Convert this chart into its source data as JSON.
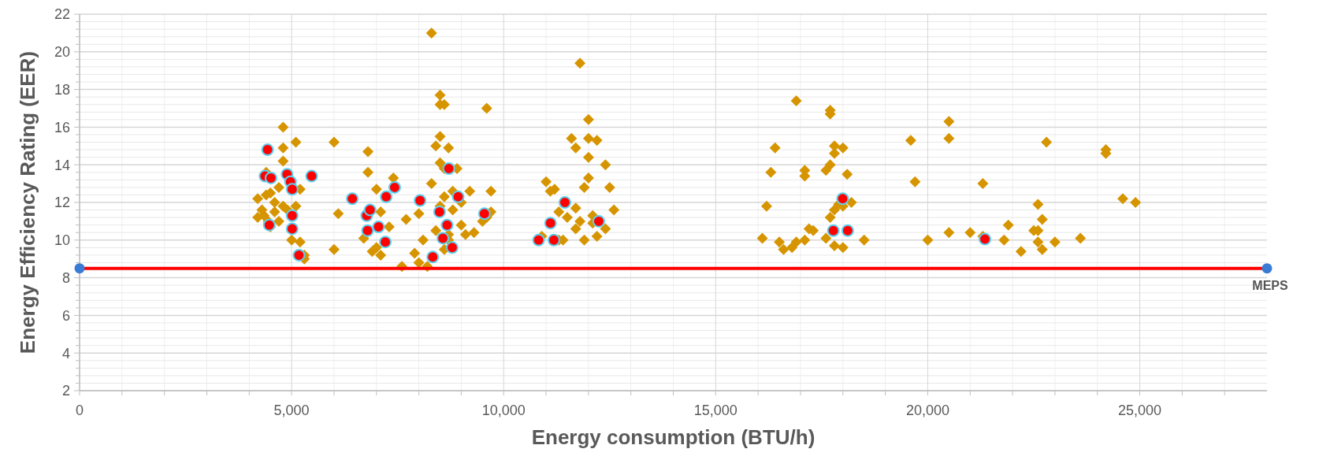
{
  "chart_data": {
    "type": "scatter",
    "xlabel": "Energy consumption (BTU/h)",
    "ylabel": "Energy Efficiency Rating (EER)",
    "xlim": [
      0,
      28000
    ],
    "xticks": [
      0,
      {
        "value": 5000,
        "label": "5,000"
      },
      {
        "value": 10000,
        "label": "10,000"
      },
      {
        "value": 15000,
        "label": "15,000"
      },
      {
        "value": 20000,
        "label": "20,000"
      },
      {
        "value": 25000,
        "label": "25,000"
      }
    ],
    "ylim": [
      2,
      22
    ],
    "yticks": [
      2,
      4,
      6,
      8,
      10,
      12,
      14,
      16,
      18,
      20,
      22
    ],
    "grid": true,
    "series": [
      {
        "marker": "diamond",
        "color": "#d69500",
        "x": [
          4200,
          4200,
          4300,
          4400,
          4400,
          4450,
          4500,
          4600,
          4600,
          4700,
          4700,
          4800,
          4800,
          4800,
          4800,
          4900,
          5000,
          5100,
          5100,
          5200,
          5200,
          5300,
          5300,
          4500,
          4350,
          6000,
          6000,
          6100,
          6800,
          6800,
          6700,
          6900,
          7000,
          7000,
          7100,
          7100,
          7300,
          7400,
          7600,
          7700,
          7900,
          8000,
          8000,
          8100,
          8200,
          8300,
          8300,
          8500,
          8500,
          8600,
          8500,
          8500,
          8600,
          8400,
          8700,
          8600,
          8500,
          8400,
          8700,
          8800,
          8800,
          8900,
          9000,
          9000,
          9100,
          9200,
          9300,
          9500,
          9600,
          9700,
          9700,
          9600,
          8600,
          8700,
          10900,
          11000,
          11100,
          11200,
          11300,
          11400,
          11500,
          11600,
          11700,
          11800,
          11700,
          11700,
          11900,
          12000,
          12000,
          12000,
          12000,
          12100,
          12100,
          12200,
          12200,
          12400,
          12400,
          12500,
          12600,
          11900,
          11300,
          11800,
          16100,
          16200,
          16300,
          16400,
          16500,
          16600,
          16800,
          16900,
          16900,
          17100,
          17100,
          17200,
          17100,
          17300,
          17600,
          17700,
          17700,
          17700,
          17800,
          17800,
          17900,
          17800,
          17700,
          17600,
          17800,
          18000,
          18000,
          18100,
          18000,
          18200,
          18500,
          19600,
          19700,
          20000,
          20500,
          20500,
          20500,
          21000,
          21300,
          21300,
          21800,
          21900,
          22200,
          22500,
          22600,
          22600,
          22600,
          22700,
          22800,
          23000,
          23600,
          24200,
          24200,
          24600,
          24900,
          22700
        ],
        "values": [
          12.2,
          11.2,
          11.6,
          12.4,
          13.6,
          11.0,
          10.7,
          12.0,
          11.5,
          12.8,
          11.0,
          14.9,
          14.2,
          16.0,
          11.8,
          11.6,
          10.0,
          15.2,
          11.8,
          12.7,
          9.9,
          9.2,
          9.0,
          12.5,
          11.3,
          15.2,
          9.5,
          11.4,
          14.7,
          13.6,
          10.1,
          9.4,
          12.7,
          9.6,
          11.5,
          9.2,
          10.7,
          13.3,
          8.6,
          11.1,
          9.3,
          8.8,
          11.4,
          10.0,
          8.6,
          13.0,
          21.0,
          17.7,
          17.2,
          17.2,
          15.5,
          14.1,
          13.8,
          15.0,
          14.9,
          12.3,
          11.8,
          10.5,
          10.3,
          12.6,
          11.6,
          13.8,
          12.0,
          10.8,
          10.3,
          12.6,
          10.4,
          11.0,
          17.0,
          12.6,
          11.5,
          11.2,
          9.5,
          10.0,
          10.2,
          13.1,
          12.6,
          12.7,
          11.5,
          10.0,
          11.2,
          15.4,
          14.9,
          19.4,
          11.7,
          10.6,
          12.8,
          16.4,
          15.4,
          14.4,
          13.3,
          11.3,
          10.9,
          10.2,
          15.3,
          14.0,
          10.6,
          12.8,
          11.6,
          10.0,
          10.0,
          11.0,
          10.1,
          11.8,
          13.6,
          14.9,
          9.9,
          9.5,
          9.6,
          17.4,
          9.9,
          13.7,
          13.4,
          10.6,
          10.0,
          10.5,
          13.7,
          14.0,
          16.9,
          16.7,
          15.0,
          14.6,
          11.9,
          11.6,
          11.2,
          10.1,
          9.7,
          9.6,
          14.9,
          13.5,
          11.8,
          12.0,
          10.0,
          15.3,
          13.1,
          10.0,
          16.3,
          15.4,
          10.4,
          10.4,
          13.0,
          10.2,
          10.0,
          10.8,
          9.4,
          10.5,
          11.9,
          10.5,
          9.9,
          9.5,
          15.2,
          9.9,
          10.1,
          14.8,
          14.6,
          12.2,
          12.0,
          11.1
        ]
      },
      {
        "marker": "circle",
        "color": "#ff0000",
        "x": [
          4433,
          4373,
          4513,
          4893,
          4973,
          5013,
          5013,
          5013,
          5173,
          5472,
          4473,
          6431,
          6771,
          6791,
          6850,
          7050,
          7210,
          7230,
          7430,
          8029,
          8328,
          8488,
          8707,
          8567,
          8787,
          8667,
          8927,
          9546,
          10824,
          11104,
          11184,
          11444,
          12243,
          17994,
          17774,
          18113,
          21349
        ],
        "values": [
          14.8,
          13.4,
          13.3,
          13.5,
          13.1,
          12.7,
          11.3,
          10.6,
          9.2,
          13.4,
          10.8,
          12.2,
          11.3,
          10.5,
          11.6,
          10.7,
          9.9,
          12.3,
          12.8,
          12.1,
          9.1,
          11.5,
          13.8,
          10.1,
          9.6,
          10.8,
          12.3,
          11.4,
          10.0,
          10.9,
          10.0,
          12.0,
          11.0,
          12.2,
          10.5,
          10.5,
          10.05
        ]
      },
      {
        "type": "line",
        "name": "MEPS",
        "color": "#ff0000",
        "colors": [
          "#3a7bd5",
          "#3a7bd5"
        ],
        "marker": "circle",
        "x": [
          0,
          28000
        ],
        "values": [
          8.5,
          8.5
        ]
      }
    ]
  }
}
